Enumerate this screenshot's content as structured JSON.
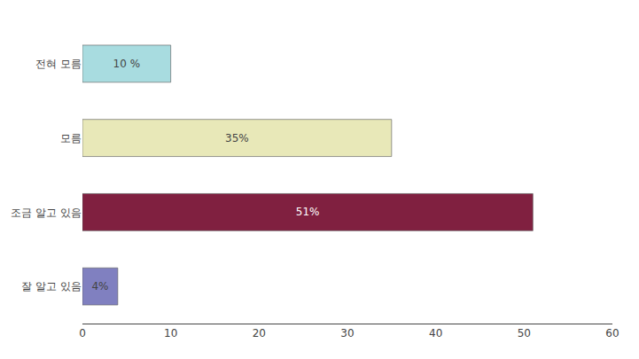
{
  "chart_data": {
    "type": "bar",
    "orientation": "horizontal",
    "categories": [
      "잘 알고 있음",
      "조금 알고 있음",
      "모름",
      "전혀 모름"
    ],
    "values": [
      4,
      51,
      35,
      10
    ],
    "value_labels": [
      "4%",
      "51%",
      "35%",
      "10 %"
    ],
    "colors": [
      "#8080c0",
      "#802040",
      "#e8e8b8",
      "#a8dce0"
    ],
    "xlim": [
      0,
      60
    ],
    "xticks": [
      0,
      10,
      20,
      30,
      40,
      50,
      60
    ],
    "grid": false,
    "data_labels": true
  }
}
